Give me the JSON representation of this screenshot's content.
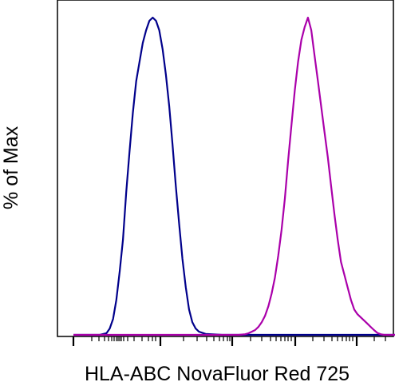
{
  "chart_data": {
    "type": "line",
    "title": "",
    "xlabel": "HLA-ABC NovaFluor Red 725",
    "ylabel": "% of Max",
    "xscale": "log (flow cytometry biexponential)",
    "ylim": [
      0,
      100
    ],
    "grid": false,
    "legend": "none",
    "series": [
      {
        "color": "#00008b",
        "points": [
          [
            0,
            0
          ],
          [
            8,
            0
          ],
          [
            10,
            0.5
          ],
          [
            11,
            2
          ],
          [
            12,
            5
          ],
          [
            13,
            11
          ],
          [
            14,
            20
          ],
          [
            15,
            30
          ],
          [
            16,
            45
          ],
          [
            17,
            58
          ],
          [
            18,
            70
          ],
          [
            19,
            80
          ],
          [
            20,
            86
          ],
          [
            21,
            92
          ],
          [
            22,
            96
          ],
          [
            23,
            99
          ],
          [
            24,
            100
          ],
          [
            25,
            99
          ],
          [
            26,
            96
          ],
          [
            27,
            90
          ],
          [
            28,
            82
          ],
          [
            29,
            72
          ],
          [
            30,
            60
          ],
          [
            31,
            47
          ],
          [
            32,
            35
          ],
          [
            33,
            24
          ],
          [
            34,
            15
          ],
          [
            35,
            8
          ],
          [
            36,
            4
          ],
          [
            37,
            2
          ],
          [
            38,
            1
          ],
          [
            40,
            0.3
          ],
          [
            45,
            0
          ],
          [
            100,
            0
          ]
        ]
      },
      {
        "color": "#aa00aa",
        "points": [
          [
            0,
            0
          ],
          [
            50,
            0
          ],
          [
            52,
            0.2
          ],
          [
            53,
            0.5
          ],
          [
            54,
            1
          ],
          [
            55,
            1.5
          ],
          [
            56,
            2.5
          ],
          [
            57,
            4
          ],
          [
            58,
            6
          ],
          [
            59,
            9
          ],
          [
            60,
            13
          ],
          [
            61,
            18
          ],
          [
            62,
            25
          ],
          [
            63,
            33
          ],
          [
            64,
            43
          ],
          [
            65,
            55
          ],
          [
            66,
            66
          ],
          [
            67,
            77
          ],
          [
            68,
            86
          ],
          [
            69,
            93
          ],
          [
            70,
            97
          ],
          [
            71,
            100
          ],
          [
            72,
            96
          ],
          [
            73,
            88
          ],
          [
            74,
            80
          ],
          [
            75,
            72
          ],
          [
            76,
            64
          ],
          [
            77,
            56
          ],
          [
            78,
            47
          ],
          [
            79,
            38
          ],
          [
            80,
            30
          ],
          [
            81,
            23
          ],
          [
            82,
            19
          ],
          [
            83,
            15
          ],
          [
            84,
            11
          ],
          [
            85,
            8
          ],
          [
            86,
            6.5
          ],
          [
            87,
            5.5
          ],
          [
            88,
            4.5
          ],
          [
            89,
            3.5
          ],
          [
            90,
            2.5
          ],
          [
            91,
            1.5
          ],
          [
            92,
            0.6
          ],
          [
            93,
            0.2
          ],
          [
            94,
            0
          ],
          [
            100,
            0
          ]
        ]
      }
    ]
  }
}
